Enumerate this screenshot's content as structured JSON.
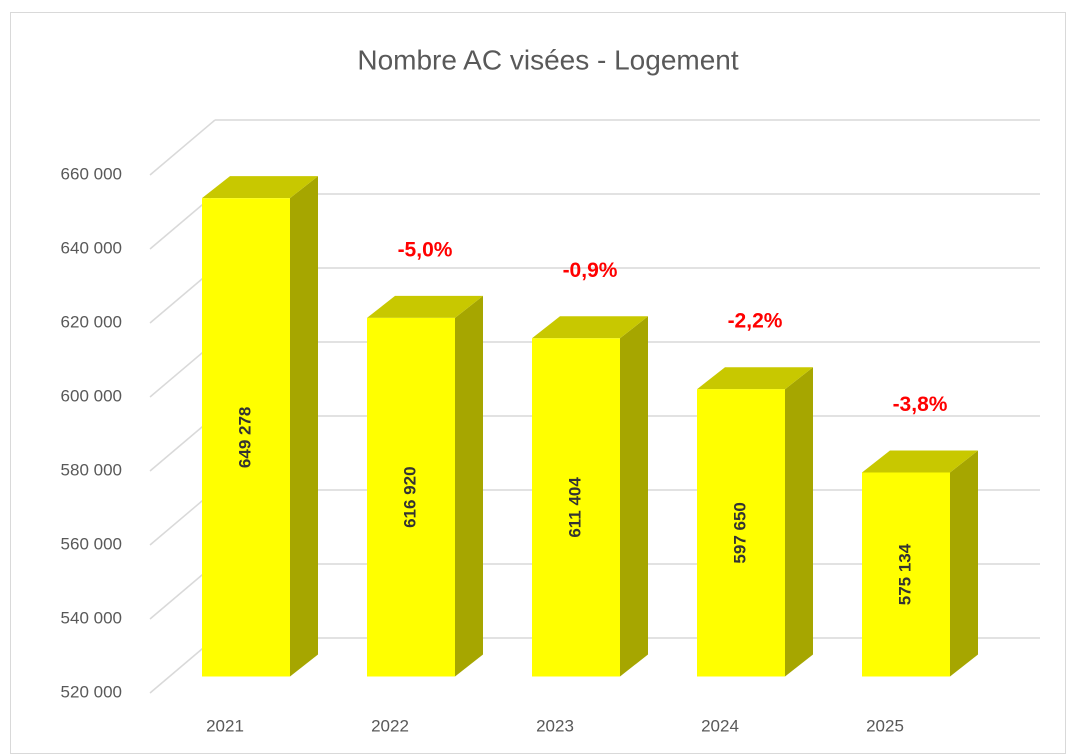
{
  "chart_data": {
    "type": "bar3d",
    "title": "Nombre AC visées - Logement",
    "categories": [
      "2021",
      "2022",
      "2023",
      "2024",
      "2025"
    ],
    "values": [
      649278,
      616920,
      611404,
      597650,
      575134
    ],
    "value_labels": [
      "649 278",
      "616 920",
      "611 404",
      "597 650",
      "575 134"
    ],
    "annotations": [
      null,
      "-5,0%",
      "-0,9%",
      "-2,2%",
      "-3,8%"
    ],
    "color": "#ffff00",
    "ylim": [
      520000,
      660000
    ],
    "yticks": [
      {
        "value": 520000,
        "label": "520 000"
      },
      {
        "value": 540000,
        "label": "540 000"
      },
      {
        "value": 560000,
        "label": "560 000"
      },
      {
        "value": 580000,
        "label": "580 000"
      },
      {
        "value": 600000,
        "label": "600 000"
      },
      {
        "value": 620000,
        "label": "620 000"
      },
      {
        "value": 640000,
        "label": "640 000"
      },
      {
        "value": 660000,
        "label": "660 000"
      }
    ],
    "grid": true
  }
}
